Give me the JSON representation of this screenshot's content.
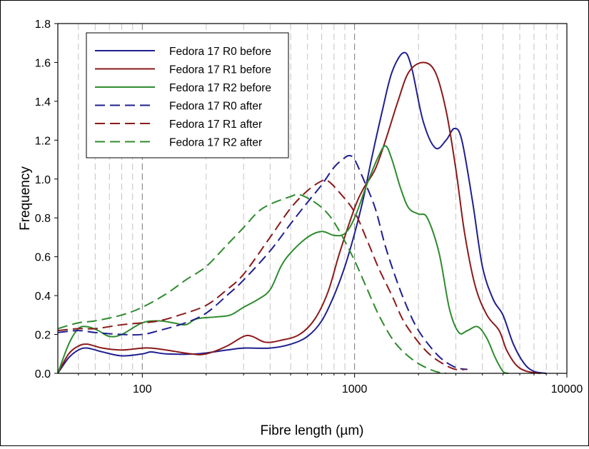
{
  "chart_data": {
    "type": "line",
    "title": "",
    "xlabel": "Fibre length (µm)",
    "ylabel": "Frequency",
    "xscale": "log",
    "xlim": [
      40,
      10000
    ],
    "ylim": [
      0,
      1.8
    ],
    "x_tick_labels": [
      "100",
      "1000",
      "10000"
    ],
    "y_tick_labels": [
      "0.0",
      "0.2",
      "0.4",
      "0.6",
      "0.8",
      "1.0",
      "1.2",
      "1.4",
      "1.6",
      "1.8"
    ],
    "grid": "vertical dashed",
    "legend_position": "top-left",
    "series": [
      {
        "name": "Fedora 17 R0 before",
        "color": "#1f1f8f",
        "style": "solid",
        "points": [
          [
            40,
            0.0
          ],
          [
            45,
            0.08
          ],
          [
            50,
            0.12
          ],
          [
            55,
            0.13
          ],
          [
            65,
            0.11
          ],
          [
            80,
            0.09
          ],
          [
            100,
            0.1
          ],
          [
            110,
            0.11
          ],
          [
            130,
            0.1
          ],
          [
            180,
            0.1
          ],
          [
            250,
            0.12
          ],
          [
            300,
            0.13
          ],
          [
            400,
            0.13
          ],
          [
            500,
            0.15
          ],
          [
            600,
            0.19
          ],
          [
            700,
            0.27
          ],
          [
            800,
            0.4
          ],
          [
            900,
            0.55
          ],
          [
            1000,
            0.72
          ],
          [
            1100,
            0.9
          ],
          [
            1200,
            1.1
          ],
          [
            1350,
            1.35
          ],
          [
            1500,
            1.55
          ],
          [
            1700,
            1.65
          ],
          [
            1850,
            1.58
          ],
          [
            2100,
            1.3
          ],
          [
            2400,
            1.16
          ],
          [
            2700,
            1.2
          ],
          [
            2950,
            1.26
          ],
          [
            3200,
            1.2
          ],
          [
            3600,
            0.88
          ],
          [
            4000,
            0.55
          ],
          [
            4500,
            0.38
          ],
          [
            5000,
            0.3
          ],
          [
            5600,
            0.15
          ],
          [
            6300,
            0.05
          ],
          [
            7000,
            0.01
          ],
          [
            8000,
            0.0
          ]
        ]
      },
      {
        "name": "Fedora 17 R1 before",
        "color": "#8b1a1a",
        "style": "solid",
        "points": [
          [
            40,
            0.0
          ],
          [
            45,
            0.1
          ],
          [
            50,
            0.14
          ],
          [
            55,
            0.15
          ],
          [
            65,
            0.13
          ],
          [
            80,
            0.12
          ],
          [
            100,
            0.13
          ],
          [
            110,
            0.13
          ],
          [
            130,
            0.12
          ],
          [
            170,
            0.1
          ],
          [
            200,
            0.1
          ],
          [
            250,
            0.14
          ],
          [
            300,
            0.19
          ],
          [
            330,
            0.19
          ],
          [
            380,
            0.16
          ],
          [
            450,
            0.17
          ],
          [
            550,
            0.2
          ],
          [
            650,
            0.28
          ],
          [
            750,
            0.42
          ],
          [
            850,
            0.62
          ],
          [
            1000,
            0.85
          ],
          [
            1100,
            0.95
          ],
          [
            1250,
            1.05
          ],
          [
            1400,
            1.2
          ],
          [
            1600,
            1.4
          ],
          [
            1800,
            1.55
          ],
          [
            2100,
            1.6
          ],
          [
            2400,
            1.55
          ],
          [
            2700,
            1.35
          ],
          [
            3000,
            1.05
          ],
          [
            3300,
            0.72
          ],
          [
            3700,
            0.45
          ],
          [
            4200,
            0.3
          ],
          [
            4800,
            0.22
          ],
          [
            5200,
            0.12
          ],
          [
            5800,
            0.04
          ],
          [
            6500,
            0.01
          ],
          [
            7500,
            0.0
          ]
        ]
      },
      {
        "name": "Fedora 17 R2 before",
        "color": "#2e8b2e",
        "style": "solid",
        "points": [
          [
            40,
            0.0
          ],
          [
            45,
            0.15
          ],
          [
            50,
            0.23
          ],
          [
            55,
            0.24
          ],
          [
            62,
            0.22
          ],
          [
            70,
            0.19
          ],
          [
            80,
            0.2
          ],
          [
            100,
            0.26
          ],
          [
            120,
            0.27
          ],
          [
            140,
            0.26
          ],
          [
            160,
            0.25
          ],
          [
            180,
            0.28
          ],
          [
            220,
            0.29
          ],
          [
            260,
            0.3
          ],
          [
            300,
            0.34
          ],
          [
            350,
            0.38
          ],
          [
            400,
            0.43
          ],
          [
            450,
            0.55
          ],
          [
            500,
            0.62
          ],
          [
            600,
            0.7
          ],
          [
            700,
            0.73
          ],
          [
            800,
            0.71
          ],
          [
            900,
            0.72
          ],
          [
            1000,
            0.8
          ],
          [
            1150,
            0.98
          ],
          [
            1300,
            1.12
          ],
          [
            1400,
            1.17
          ],
          [
            1500,
            1.1
          ],
          [
            1650,
            0.95
          ],
          [
            1800,
            0.85
          ],
          [
            2000,
            0.82
          ],
          [
            2200,
            0.8
          ],
          [
            2500,
            0.62
          ],
          [
            2800,
            0.33
          ],
          [
            3100,
            0.21
          ],
          [
            3400,
            0.22
          ],
          [
            3800,
            0.24
          ],
          [
            4200,
            0.18
          ],
          [
            4600,
            0.08
          ],
          [
            5000,
            0.01
          ],
          [
            5300,
            0.0
          ]
        ]
      },
      {
        "name": "Fedora 17 R0 after",
        "color": "#1f1f8f",
        "style": "dashed",
        "points": [
          [
            40,
            0.21
          ],
          [
            50,
            0.22
          ],
          [
            60,
            0.21
          ],
          [
            80,
            0.2
          ],
          [
            100,
            0.2
          ],
          [
            120,
            0.22
          ],
          [
            160,
            0.26
          ],
          [
            200,
            0.31
          ],
          [
            250,
            0.4
          ],
          [
            300,
            0.48
          ],
          [
            400,
            0.63
          ],
          [
            500,
            0.77
          ],
          [
            600,
            0.88
          ],
          [
            700,
            0.97
          ],
          [
            800,
            1.06
          ],
          [
            900,
            1.11
          ],
          [
            950,
            1.12
          ],
          [
            1000,
            1.1
          ],
          [
            1100,
            1.0
          ],
          [
            1250,
            0.85
          ],
          [
            1400,
            0.65
          ],
          [
            1600,
            0.46
          ],
          [
            1800,
            0.32
          ],
          [
            2000,
            0.22
          ],
          [
            2300,
            0.13
          ],
          [
            2600,
            0.07
          ],
          [
            3000,
            0.03
          ],
          [
            3400,
            0.02
          ]
        ]
      },
      {
        "name": "Fedora 17 R1 after",
        "color": "#8b1a1a",
        "style": "dashed",
        "points": [
          [
            40,
            0.22
          ],
          [
            50,
            0.23
          ],
          [
            60,
            0.23
          ],
          [
            80,
            0.25
          ],
          [
            100,
            0.26
          ],
          [
            120,
            0.27
          ],
          [
            150,
            0.3
          ],
          [
            200,
            0.35
          ],
          [
            250,
            0.43
          ],
          [
            300,
            0.51
          ],
          [
            400,
            0.7
          ],
          [
            500,
            0.85
          ],
          [
            600,
            0.94
          ],
          [
            700,
            0.99
          ],
          [
            750,
            0.99
          ],
          [
            850,
            0.93
          ],
          [
            1000,
            0.83
          ],
          [
            1150,
            0.68
          ],
          [
            1300,
            0.54
          ],
          [
            1500,
            0.4
          ],
          [
            1700,
            0.27
          ],
          [
            2000,
            0.16
          ],
          [
            2300,
            0.09
          ],
          [
            2700,
            0.04
          ],
          [
            3000,
            0.02
          ],
          [
            3300,
            0.02
          ]
        ]
      },
      {
        "name": "Fedora 17 R2 after",
        "color": "#2e8b2e",
        "style": "dashed",
        "points": [
          [
            40,
            0.23
          ],
          [
            50,
            0.26
          ],
          [
            60,
            0.27
          ],
          [
            80,
            0.3
          ],
          [
            100,
            0.34
          ],
          [
            130,
            0.41
          ],
          [
            160,
            0.48
          ],
          [
            200,
            0.55
          ],
          [
            250,
            0.66
          ],
          [
            300,
            0.75
          ],
          [
            350,
            0.83
          ],
          [
            400,
            0.87
          ],
          [
            500,
            0.91
          ],
          [
            550,
            0.92
          ],
          [
            650,
            0.88
          ],
          [
            750,
            0.82
          ],
          [
            850,
            0.73
          ],
          [
            1000,
            0.58
          ],
          [
            1150,
            0.43
          ],
          [
            1300,
            0.3
          ],
          [
            1500,
            0.18
          ],
          [
            1700,
            0.11
          ],
          [
            2000,
            0.05
          ],
          [
            2400,
            0.01
          ],
          [
            2700,
            0.0
          ]
        ]
      }
    ]
  }
}
